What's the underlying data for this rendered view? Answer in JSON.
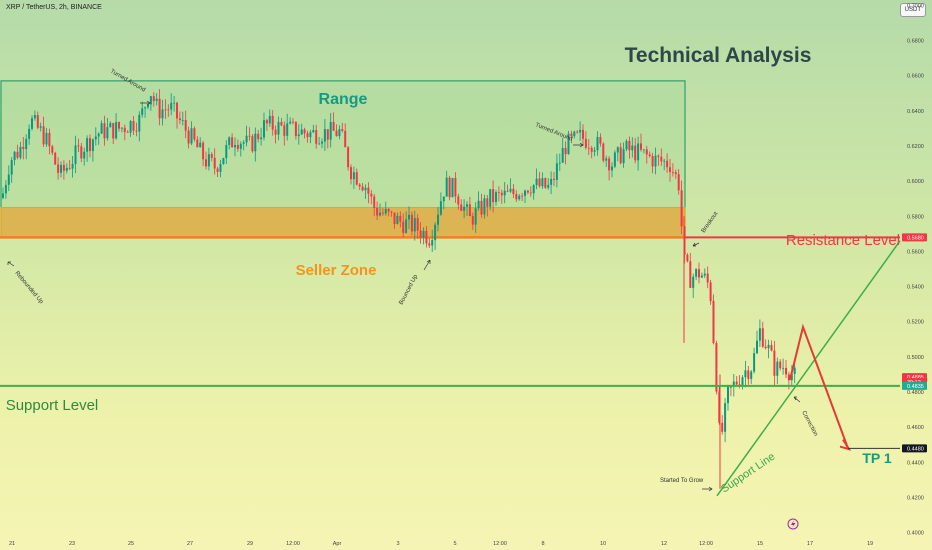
{
  "header": {
    "symbol": "XRP / TetherUS, 2h, BINANCE",
    "currency_button": "USDT"
  },
  "footer": {
    "icon": "lightning-icon"
  },
  "chart_data": {
    "type": "candlestick",
    "title": "Technical Analysis",
    "x_ticks": [
      "21",
      "23",
      "25",
      "27",
      "29",
      "12:00",
      "Apr",
      "3",
      "5",
      "12:00",
      "8",
      "10",
      "12",
      "12:00",
      "15",
      "17",
      "19"
    ],
    "y_ticks": [
      "0.7000",
      "0.6800",
      "0.6600",
      "0.6400",
      "0.6200",
      "0.6000",
      "0.5800",
      "0.5600",
      "0.5400",
      "0.5200",
      "0.5000",
      "0.4800",
      "0.4600",
      "0.4400",
      "0.4200",
      "0.4000"
    ],
    "ylim": [
      0.397,
      0.703
    ],
    "price_labels": [
      {
        "value": 0.568,
        "text": "0.5680",
        "color": "#f23645",
        "text_color": "#ffffff"
      },
      {
        "value": 0.4885,
        "text": "0.4885",
        "color": "#f23645",
        "text_color": "#ffffff"
      },
      {
        "value": 0.4857,
        "text": "39:12",
        "color": "#f23645",
        "text_color": "#ffffff"
      },
      {
        "value": 0.4835,
        "text": "0.4835",
        "color": "#22ab94",
        "text_color": "#ffffff"
      },
      {
        "value": 0.448,
        "text": "0.4480",
        "color": "#131722",
        "text_color": "#ffffff"
      }
    ],
    "zones": [
      {
        "name": "Range",
        "from": 0.568,
        "to": 0.657,
        "color": "#4caf50"
      },
      {
        "name": "Seller Zone",
        "from": 0.568,
        "to": 0.585,
        "color": "#f0a020"
      }
    ],
    "levels": [
      {
        "name": "Resistance Level",
        "value": 0.568,
        "color": "#f23645"
      },
      {
        "name": "Support Level",
        "value": 0.4835,
        "color": "#4caf50"
      }
    ],
    "target": {
      "name": "TP 1",
      "value": 0.448
    },
    "annotations": [
      "Turned Around",
      "Turned Around",
      "Rebounded Up",
      "Bounced Up",
      "Breakout",
      "Correction",
      "Started To Grow",
      "Support Line"
    ],
    "series_summary": [
      {
        "label": "21",
        "close": 0.613
      },
      {
        "label": "23",
        "close": 0.623
      },
      {
        "label": "25",
        "close": 0.642
      },
      {
        "label": "27",
        "close": 0.618
      },
      {
        "label": "29",
        "close": 0.631
      },
      {
        "label": "Apr",
        "close": 0.63
      },
      {
        "label": "3",
        "close": 0.578
      },
      {
        "label": "5",
        "close": 0.583
      },
      {
        "label": "8",
        "close": 0.601
      },
      {
        "label": "10",
        "close": 0.622
      },
      {
        "label": "12",
        "close": 0.601
      },
      {
        "label": "12:00",
        "close": 0.542
      },
      {
        "label": "15",
        "close": 0.495
      },
      {
        "label": "16",
        "close": 0.4885
      }
    ],
    "grid": false,
    "colors": {
      "up": "#089981",
      "down": "#f23645"
    }
  }
}
